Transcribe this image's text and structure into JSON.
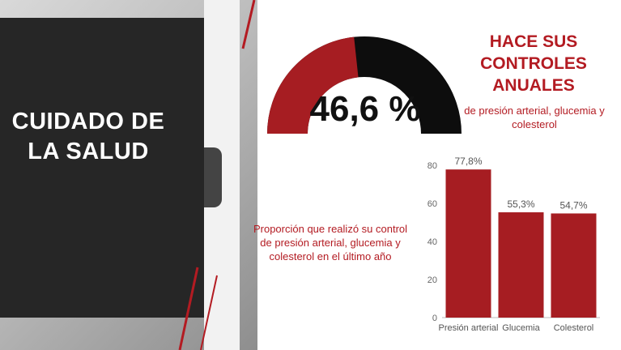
{
  "side_title": "CUIDADO DE LA SALUD",
  "gauge": {
    "value": 46.6,
    "label": "46,6 %",
    "fill_color": "#a61d22",
    "track_color": "#0d0d0d"
  },
  "headline": {
    "title": "HACE SUS CONTROLES ANUALES",
    "subtitle": "de presión arterial, glucemia y colesterol"
  },
  "caption": "Proporción que realizó su control de presión arterial, glucemia y colesterol en el último año",
  "colors": {
    "accent": "#b31b22",
    "bar": "#a61d22",
    "dark": "#262626"
  },
  "chart_data": {
    "type": "bar",
    "categories": [
      "Presión arterial",
      "Glucemia",
      "Colesterol"
    ],
    "values": [
      77.8,
      55.3,
      54.7
    ],
    "data_labels": [
      "77,8%",
      "55,3%",
      "54,7%"
    ],
    "yticks": [
      "0",
      "20",
      "40",
      "60",
      "80"
    ],
    "ylim": [
      0,
      80
    ],
    "title": "",
    "xlabel": "",
    "ylabel": "",
    "grid": false
  }
}
